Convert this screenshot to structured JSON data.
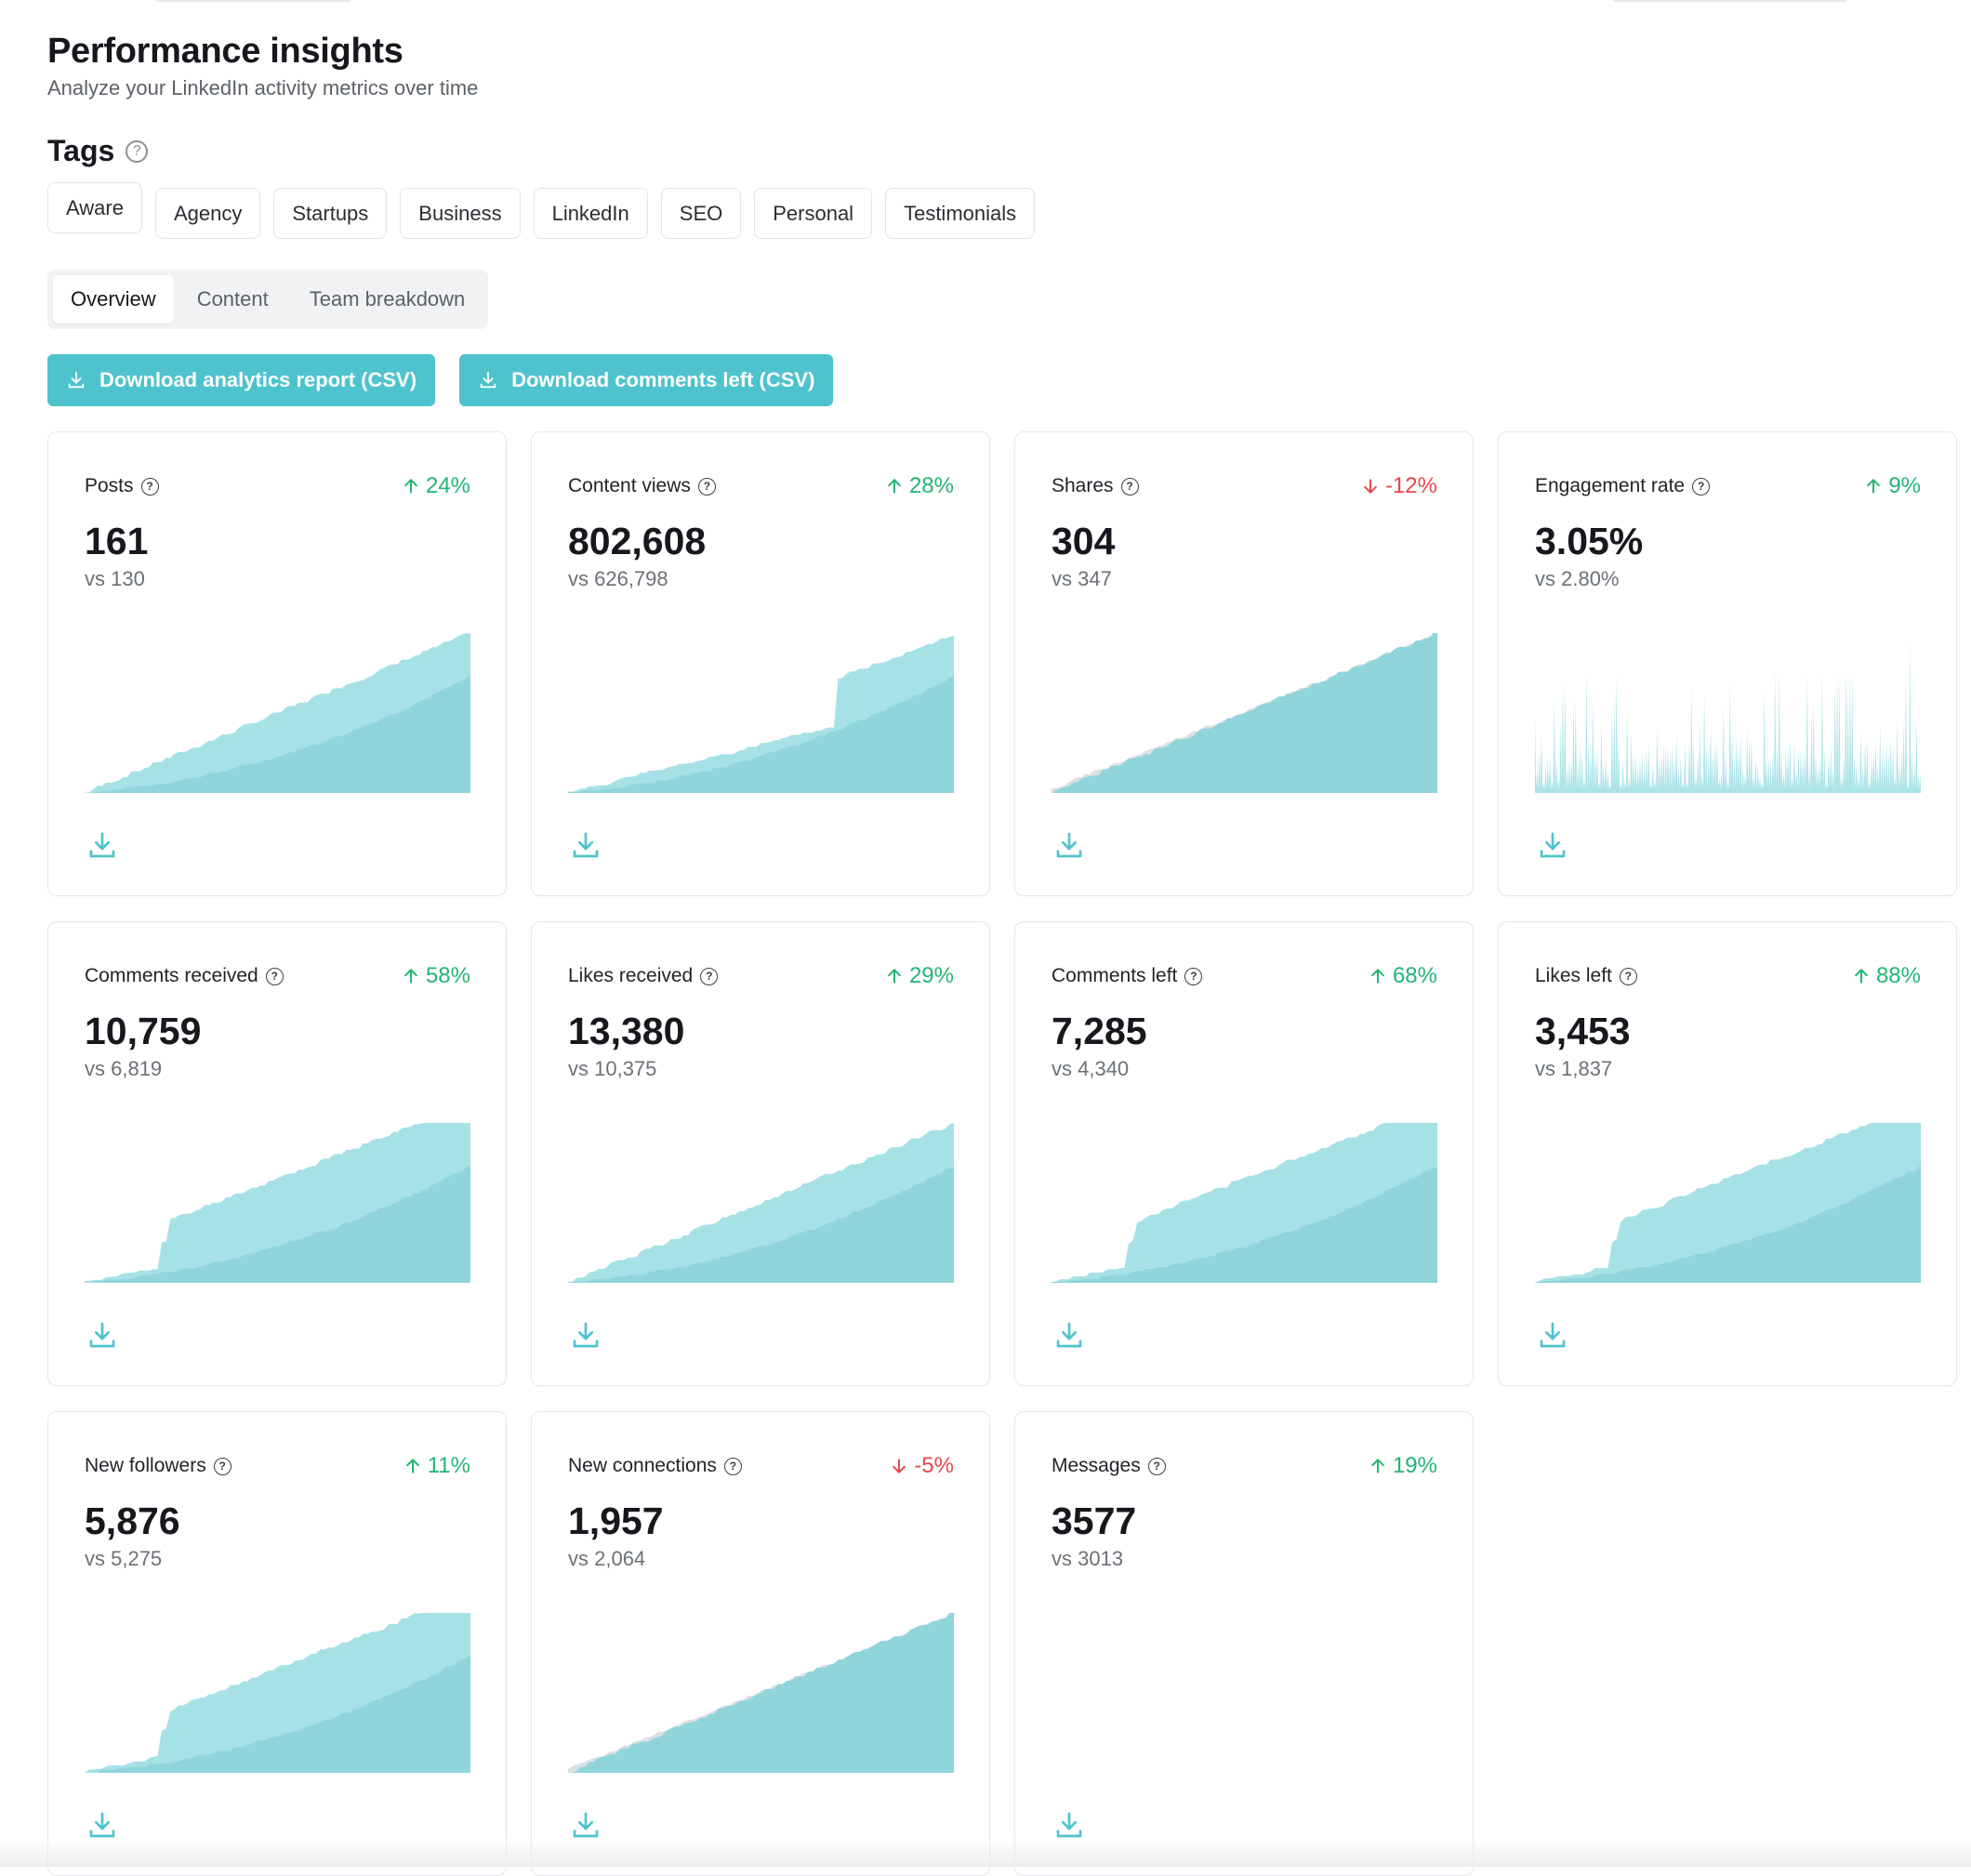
{
  "header": {
    "title": "Performance insights",
    "subtitle": "Analyze your LinkedIn activity metrics over time"
  },
  "tags": {
    "heading": "Tags",
    "items": [
      "Aware",
      "Agency",
      "Startups",
      "Business",
      "LinkedIn",
      "SEO",
      "Personal",
      "Testimonials"
    ]
  },
  "tabs": {
    "items": [
      "Overview",
      "Content",
      "Team breakdown"
    ],
    "active": "Overview"
  },
  "actions": {
    "download_analytics": "Download analytics report (CSV)",
    "download_comments": "Download comments left (CSV)"
  },
  "colors": {
    "accent": "#4ec3cd",
    "area_current": "#a6e1e6",
    "area_previous": "#8fd5db",
    "up": "#22b573",
    "down": "#e5484d"
  },
  "metrics": [
    {
      "label": "Posts",
      "change": "24%",
      "direction": "up",
      "value": "161",
      "previous": "vs 130",
      "chart": "cumulative"
    },
    {
      "label": "Content views",
      "change": "28%",
      "direction": "up",
      "value": "802,608",
      "previous": "vs 626,798",
      "chart": "cumulative-step"
    },
    {
      "label": "Shares",
      "change": "-12%",
      "direction": "down",
      "value": "304",
      "previous": "vs 347",
      "chart": "cumulative-down"
    },
    {
      "label": "Engagement rate",
      "change": "9%",
      "direction": "up",
      "value": "3.05%",
      "previous": "vs 2.80%",
      "chart": "spiky"
    },
    {
      "label": "Comments received",
      "change": "58%",
      "direction": "up",
      "value": "10,759",
      "previous": "vs 6,819",
      "chart": "cumulative-jump"
    },
    {
      "label": "Likes received",
      "change": "29%",
      "direction": "up",
      "value": "13,380",
      "previous": "vs 10,375",
      "chart": "cumulative"
    },
    {
      "label": "Comments left",
      "change": "68%",
      "direction": "up",
      "value": "7,285",
      "previous": "vs 4,340",
      "chart": "cumulative-jump"
    },
    {
      "label": "Likes left",
      "change": "88%",
      "direction": "up",
      "value": "3,453",
      "previous": "vs 1,837",
      "chart": "cumulative-jump"
    },
    {
      "label": "New followers",
      "change": "11%",
      "direction": "up",
      "value": "5,876",
      "previous": "vs 5,275",
      "chart": "cumulative-jump"
    },
    {
      "label": "New connections",
      "change": "-5%",
      "direction": "down",
      "value": "1,957",
      "previous": "vs 2,064",
      "chart": "cumulative-down"
    },
    {
      "label": "Messages",
      "change": "19%",
      "direction": "up",
      "value": "3577",
      "previous": "vs 3013",
      "chart": "none"
    }
  ]
}
